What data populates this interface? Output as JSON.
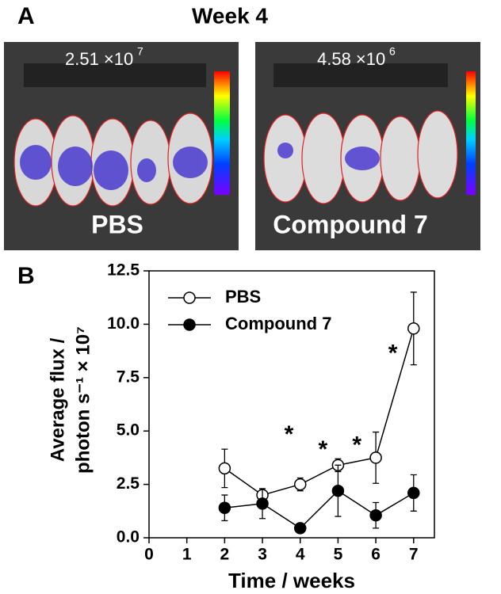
{
  "panel_a": {
    "label": "A",
    "title": "Week 4",
    "images": [
      {
        "mantissa": "2.51 ×10",
        "exponent": "7",
        "caption": "PBS"
      },
      {
        "mantissa": "4.58 ×10",
        "exponent": "6",
        "caption": "Compound 7"
      }
    ]
  },
  "chart_data": {
    "type": "line",
    "panel_label": "B",
    "x_label": "Time / weeks",
    "y_label": [
      "Average flux /",
      "photon s⁻¹ × 10⁷"
    ],
    "x": [
      2,
      3,
      4,
      5,
      6,
      7
    ],
    "series": [
      {
        "name": "PBS",
        "color": "#000000",
        "marker": "open",
        "values": [
          3.25,
          2.0,
          2.5,
          3.4,
          3.75,
          9.8
        ],
        "errors": [
          0.9,
          0.3,
          0.3,
          0.3,
          1.2,
          1.7
        ]
      },
      {
        "name": "Compound 7",
        "color": "#000000",
        "marker": "filled",
        "values": [
          1.4,
          1.6,
          0.45,
          2.2,
          1.05,
          2.1
        ],
        "errors": [
          0.6,
          0.7,
          0.1,
          1.2,
          0.6,
          0.85
        ]
      }
    ],
    "xlim": [
      0,
      7.55
    ],
    "ylim": [
      0,
      12.5
    ],
    "xticks": [
      0,
      1,
      2,
      3,
      4,
      5,
      6,
      7
    ],
    "yticks": [
      {
        "value": 0,
        "label": "0.0"
      },
      2.5,
      {
        "value": 5,
        "label": "5.0"
      },
      7.5,
      {
        "value": 10,
        "label": "10.0"
      },
      12.5
    ],
    "annotations": [
      {
        "text": "*",
        "x": 3.7,
        "y": 5.0
      },
      {
        "text": "*",
        "x": 4.6,
        "y": 4.3
      },
      {
        "text": "*",
        "x": 5.5,
        "y": 4.5
      },
      {
        "text": "*",
        "x": 6.45,
        "y": 8.8
      }
    ],
    "legend": "upper-left"
  }
}
